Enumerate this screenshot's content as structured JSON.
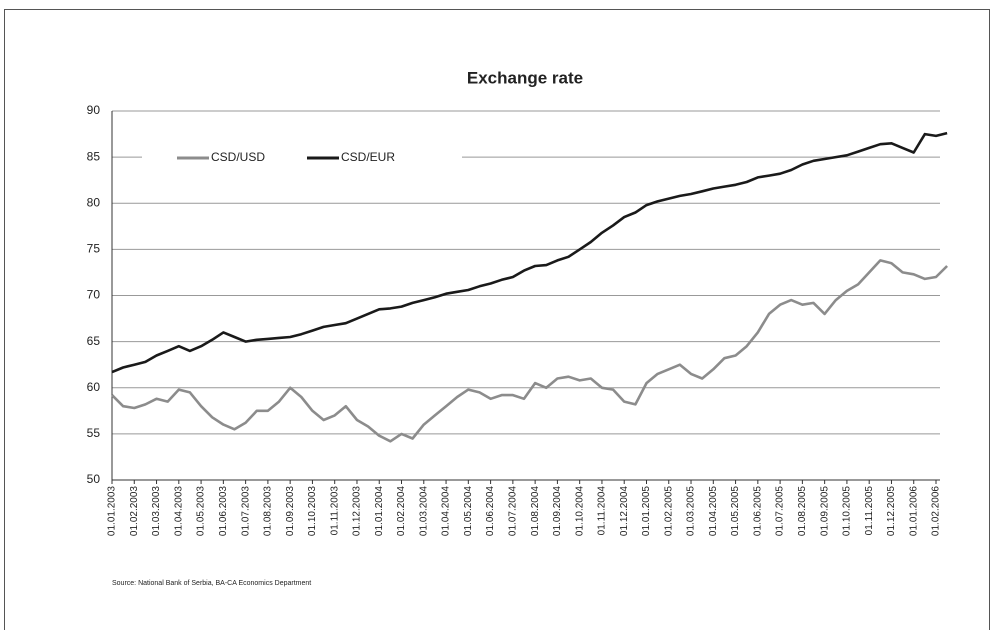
{
  "chart_data": {
    "type": "line",
    "title": "Exchange rate",
    "source": "Source: National Bank of Serbia, BA-CA Economics Department",
    "categories": [
      "01.01.2003",
      null,
      "01.02.2003",
      null,
      "01.03.2003",
      null,
      "01.04.2003",
      null,
      "01.05.2003",
      null,
      "01.06.2003",
      null,
      "01.07.2003",
      null,
      "01.08.2003",
      null,
      "01.09.2003",
      null,
      "01.10.2003",
      null,
      "01.11.2003",
      null,
      "01.12.2003",
      null,
      "01.01.2004",
      null,
      "01.02.2004",
      null,
      "01.03.2004",
      null,
      "01.04.2004",
      null,
      "01.05.2004",
      null,
      "01.06.2004",
      null,
      "01.07.2004",
      null,
      "01.08.2004",
      null,
      "01.09.2004",
      null,
      "01.10.2004",
      null,
      "01.11.2004",
      null,
      "01.12.2004",
      null,
      "01.01.2005",
      null,
      "01.02.2005",
      null,
      "01.03.2005",
      null,
      "01.04.2005",
      null,
      "01.05.2005",
      null,
      "01.06.2005",
      null,
      "01.07.2005",
      null,
      "01.08.2005",
      null,
      "01.09.2005",
      null,
      "01.10.2005",
      null,
      "01.11.2005",
      null,
      "01.12.2005",
      null,
      "01.01.2006",
      null,
      "01.02.2006",
      null
    ],
    "series": [
      {
        "name": "CSD/USD",
        "color": "#8c8c8c",
        "values": [
          59.2,
          58.0,
          57.8,
          58.2,
          58.8,
          58.5,
          59.8,
          59.5,
          58.0,
          56.8,
          56.0,
          55.5,
          56.2,
          57.5,
          57.5,
          58.5,
          60.0,
          59.0,
          57.5,
          56.5,
          57.0,
          58.0,
          56.5,
          55.8,
          54.8,
          54.2,
          55.0,
          54.5,
          56.0,
          57.0,
          58.0,
          59.0,
          59.8,
          59.5,
          58.8,
          59.2,
          59.2,
          58.8,
          60.5,
          60.0,
          61.0,
          61.2,
          60.8,
          61.0,
          60.0,
          59.8,
          58.5,
          58.2,
          60.5,
          61.5,
          62.0,
          62.5,
          61.5,
          61.0,
          62.0,
          63.2,
          63.5,
          64.5,
          66.0,
          68.0,
          69.0,
          69.5,
          69.0,
          69.2,
          68.0,
          69.5,
          70.5,
          71.2,
          72.5,
          73.8,
          73.5,
          72.5,
          72.3,
          71.8,
          72.0,
          73.2
        ]
      },
      {
        "name": "CSD/EUR",
        "color": "#1a1a1a",
        "values": [
          61.7,
          62.2,
          62.5,
          62.8,
          63.5,
          64.0,
          64.5,
          64.0,
          64.5,
          65.2,
          66.0,
          65.5,
          65.0,
          65.2,
          65.3,
          65.4,
          65.5,
          65.8,
          66.2,
          66.6,
          66.8,
          67.0,
          67.5,
          68.0,
          68.5,
          68.6,
          68.8,
          69.2,
          69.5,
          69.8,
          70.2,
          70.4,
          70.6,
          71.0,
          71.3,
          71.7,
          72.0,
          72.7,
          73.2,
          73.3,
          73.8,
          74.2,
          75.0,
          75.8,
          76.8,
          77.6,
          78.5,
          79.0,
          79.8,
          80.2,
          80.5,
          80.8,
          81.0,
          81.3,
          81.6,
          81.8,
          82.0,
          82.3,
          82.8,
          83.0,
          83.2,
          83.6,
          84.2,
          84.6,
          84.8,
          85.0,
          85.2,
          85.6,
          86.0,
          86.4,
          86.5,
          86.0,
          85.5,
          87.5,
          87.3,
          87.6
        ]
      }
    ],
    "ylim": [
      50,
      90
    ],
    "yticks": [
      50,
      55,
      60,
      65,
      70,
      75,
      80,
      85,
      90
    ],
    "grid": true,
    "legend": "top-left"
  }
}
